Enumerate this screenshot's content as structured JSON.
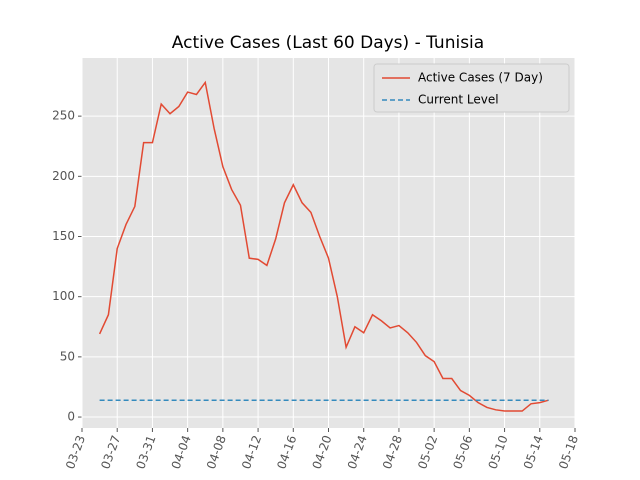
{
  "chart_data": {
    "type": "line",
    "title": "Active Cases (Last 60 Days) - Tunisia",
    "x": [
      "03-25",
      "03-26",
      "03-27",
      "03-28",
      "03-29",
      "03-30",
      "03-31",
      "04-01",
      "04-02",
      "04-03",
      "04-04",
      "04-05",
      "04-06",
      "04-07",
      "04-08",
      "04-09",
      "04-10",
      "04-11",
      "04-12",
      "04-13",
      "04-14",
      "04-15",
      "04-16",
      "04-17",
      "04-18",
      "04-19",
      "04-20",
      "04-21",
      "04-22",
      "04-23",
      "04-24",
      "04-25",
      "04-26",
      "04-27",
      "04-28",
      "04-29",
      "04-30",
      "05-01",
      "05-02",
      "05-03",
      "05-04",
      "05-05",
      "05-06",
      "05-07",
      "05-08",
      "05-09",
      "05-10",
      "05-11",
      "05-12",
      "05-13",
      "05-14",
      "05-15"
    ],
    "series": [
      {
        "name": "Active Cases (7 Day)",
        "color": "#E24A33",
        "dashed": false,
        "values": [
          69,
          85,
          140,
          160,
          175,
          228,
          228,
          260,
          252,
          258,
          270,
          268,
          278,
          240,
          208,
          189,
          176,
          132,
          131,
          126,
          148,
          178,
          193,
          178,
          170,
          150,
          132,
          100,
          58,
          75,
          70,
          85,
          80,
          74,
          76,
          70,
          62,
          51,
          46,
          32,
          32,
          22,
          18,
          12,
          8,
          6,
          5,
          5,
          5,
          11,
          12,
          14
        ]
      },
      {
        "name": "Current Level",
        "color": "#348ABD",
        "dashed": true,
        "values": [
          14,
          14,
          14,
          14,
          14,
          14,
          14,
          14,
          14,
          14,
          14,
          14,
          14,
          14,
          14,
          14,
          14,
          14,
          14,
          14,
          14,
          14,
          14,
          14,
          14,
          14,
          14,
          14,
          14,
          14,
          14,
          14,
          14,
          14,
          14,
          14,
          14,
          14,
          14,
          14,
          14,
          14,
          14,
          14,
          14,
          14,
          14,
          14,
          14,
          14,
          14,
          14
        ]
      }
    ],
    "xlim": [
      "03-23",
      "05-18"
    ],
    "xticks": [
      "03-23",
      "03-27",
      "03-31",
      "04-04",
      "04-08",
      "04-12",
      "04-16",
      "04-20",
      "04-24",
      "04-28",
      "05-02",
      "05-06",
      "05-10",
      "05-14",
      "05-18"
    ],
    "ylim": [
      -9.1,
      298.3
    ],
    "yticks": [
      0,
      50,
      100,
      150,
      200,
      250
    ],
    "grid": true,
    "legend": "upper right"
  }
}
